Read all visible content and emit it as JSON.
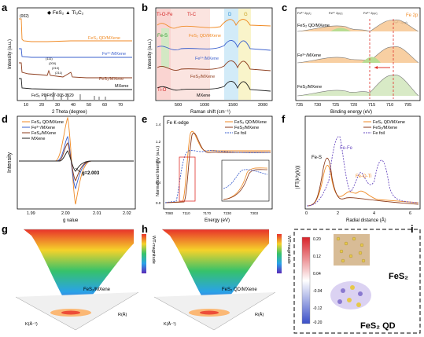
{
  "panels": {
    "a": {
      "label": "a",
      "legend": [
        "FeS₂",
        "Ti₃C₂"
      ],
      "peak_label": "(002)",
      "ylabel": "Intensity (a.u.)",
      "xlabel": "2 Theta (degree)",
      "xticks": [
        "10",
        "20",
        "30",
        "40",
        "50",
        "60",
        "70"
      ],
      "series": [
        "FeS₂ QD/MXene",
        "Fe³⁺/MXene",
        "FeS₂/MXene",
        "MXene"
      ],
      "ref_label": "FeS₂ PDF#97-005-3529",
      "hkl": [
        "(111)",
        "(200)",
        "(210)",
        "(211)",
        "(220)",
        "(311)",
        "(222)",
        "(321)"
      ]
    },
    "b": {
      "label": "b",
      "regions": [
        "Ti-O-Fe",
        "Ti-C",
        "D",
        "G",
        "Fe-S",
        "Ti-O"
      ],
      "series": [
        "FeS₂ QD/MXene",
        "Fe³⁺/MXene",
        "FeS₂/MXene",
        "MXene"
      ],
      "ylabel": "Intensity (a.u.)",
      "xlabel": "Raman shift (cm⁻¹)",
      "xticks": [
        "500",
        "1000",
        "1500",
        "2000"
      ]
    },
    "c": {
      "label": "c",
      "peaks_top": [
        "Fe³⁺ 2p₁/₂",
        "Fe²⁺ 2p₁/₂",
        "Fe²⁺ 2p₃/₂",
        "Fe³⁺ 2p₃/₂"
      ],
      "series": [
        "FeS₂ QD/MXene",
        "Fe³⁺/MXene",
        "FeS₂/MXene"
      ],
      "region": "Fe 2p",
      "xlabel": "Binding energy (eV)",
      "xticks": [
        "735",
        "730",
        "725",
        "720",
        "715",
        "710",
        "705"
      ]
    },
    "d": {
      "label": "d",
      "legend": [
        "FeS₂ QD/MXene",
        "Fe³⁺/MXene",
        "FeS₂/MXene",
        "MXene"
      ],
      "annotation": "g=2.003",
      "ylabel": "Intensity",
      "xlabel": "g value",
      "xticks": [
        "1.99",
        "2.00",
        "2.01",
        "2.02"
      ]
    },
    "e": {
      "label": "e",
      "title": "Fe K-edge",
      "legend": [
        "FeS₂ QD/MXene",
        "FeS₂/MXene",
        "Fe foil"
      ],
      "ylabel": "Normalized Intensity (a.u.)",
      "xlabel": "Energy (eV)",
      "xticks": [
        "7080",
        "7110",
        "7140",
        "7170",
        "7200",
        "7230",
        "7260",
        "7290",
        "7303"
      ],
      "yticks": [
        "0.0",
        "0.2",
        "0.4",
        "0.6",
        "0.8",
        "1.0",
        "1.2",
        "1.4"
      ]
    },
    "f": {
      "label": "f",
      "legend": [
        "FeS₂ QD/MXene",
        "FeS₂/MXene",
        "Fe foil"
      ],
      "annotations": [
        "Fe-S",
        "Fe-Fe",
        "Fe-O-Ti"
      ],
      "ylabel": "|FT(k³χ(k))|",
      "xlabel": "Radial distance (Å)",
      "xticks": [
        "0",
        "2",
        "4",
        "6"
      ]
    },
    "g": {
      "label": "g",
      "sample": "FeS₂/MXene",
      "zlabel": "WT-magnitude",
      "axis1": "K(Å⁻¹)",
      "axis2": "R(Å)"
    },
    "h": {
      "label": "h",
      "sample": "FeS₂ QD/MXene",
      "zlabel": "WT-magnitude",
      "axis1": "K(Å⁻¹)",
      "axis2": "R(Å)"
    },
    "i": {
      "label": "i",
      "colorbar_ticks": [
        "0.20",
        "0.12",
        "0.04",
        "-0.04",
        "-0.12",
        "-0.20"
      ],
      "labels": [
        "FeS₂",
        "FeS₂ QD"
      ]
    }
  },
  "colors": {
    "qd": "#f08a24",
    "fe3": "#3a5fcd",
    "fes2": "#8b3a1a",
    "mxene": "#222222",
    "fefoil": "#6a4cc0"
  }
}
